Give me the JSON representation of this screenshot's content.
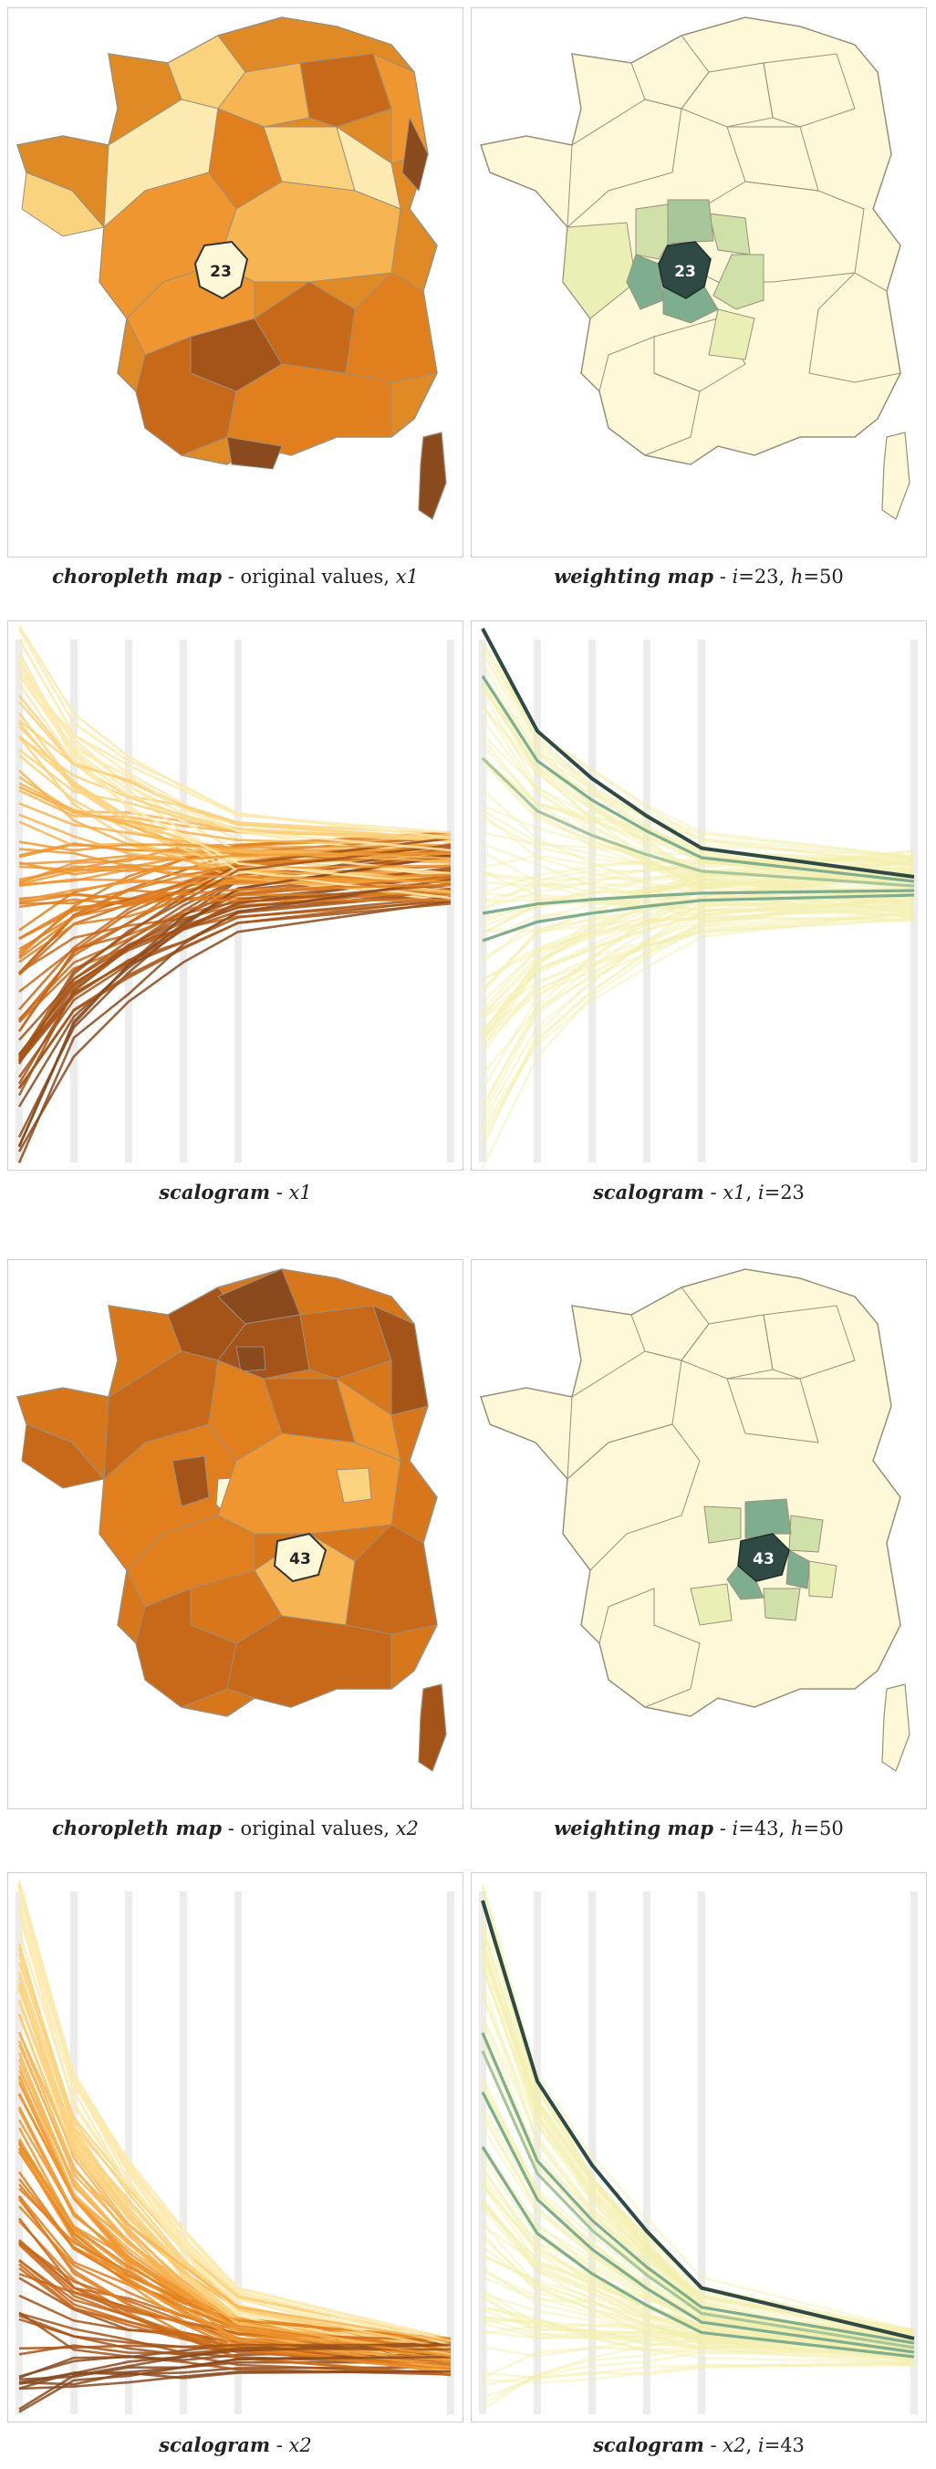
{
  "figures": [
    {
      "choropleth": {
        "marker_label": "23",
        "caption": {
          "title": "choropleth map",
          "sep": " - ",
          "text": "original values, ",
          "var": "x1"
        }
      },
      "weighting": {
        "marker_label": "23",
        "caption": {
          "title": "weighting map",
          "sep": " - ",
          "i_label": "i",
          "i_value": "=23",
          "comma": ", ",
          "h_label": "h",
          "h_value": "=50"
        }
      },
      "scalogram": {
        "caption": {
          "title": "scalogram",
          "sep": " - ",
          "var": "x1"
        }
      },
      "scalogram_weighted": {
        "caption": {
          "title": "scalogram",
          "sep": " - ",
          "var": "x1",
          "comma": ", ",
          "i_label": "i",
          "i_value": "=23"
        }
      }
    },
    {
      "choropleth": {
        "marker_label": "43",
        "caption": {
          "title": "choropleth map",
          "sep": " - ",
          "text": "original values, ",
          "var": "x2"
        }
      },
      "weighting": {
        "marker_label": "43",
        "caption": {
          "title": "weighting map",
          "sep": " - ",
          "i_label": "i",
          "i_value": "=43",
          "comma": ", ",
          "h_label": "h",
          "h_value": "=50"
        }
      },
      "scalogram": {
        "caption": {
          "title": "scalogram",
          "sep": " - ",
          "var": "x2"
        }
      },
      "scalogram_weighted": {
        "caption": {
          "title": "scalogram",
          "sep": " - ",
          "var": "x2",
          "comma": ", ",
          "i_label": "i",
          "i_value": "=43"
        }
      }
    }
  ],
  "colors": {
    "orange_scale": [
      "#fdeab0",
      "#fbd27e",
      "#f7b452",
      "#ef9630",
      "#e17f1f",
      "#c8691a",
      "#a45418",
      "#8a4a1e"
    ],
    "yellow_bg": "#fcf8d8",
    "green_scale": [
      "#e9efb5",
      "#cfe0a8",
      "#a7c79a",
      "#7fae8e",
      "#4f8076"
    ],
    "dark_center": "#2f4a44",
    "region_border": "#9b8f7c",
    "scale_bar": "#ececec"
  }
}
